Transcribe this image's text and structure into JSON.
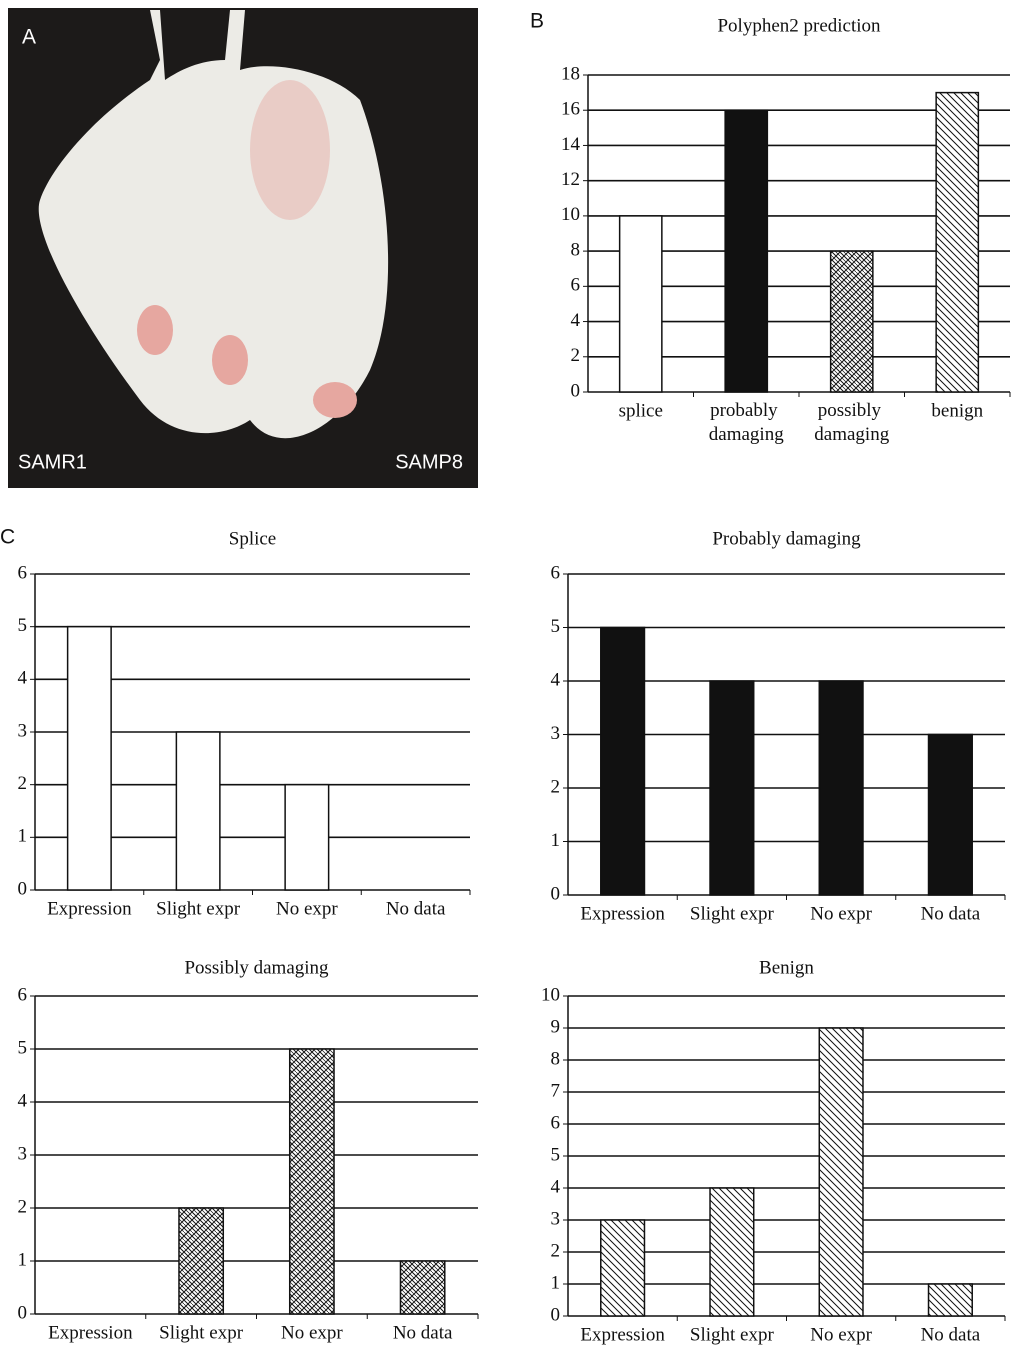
{
  "panel_labels": [
    "A",
    "B",
    "C"
  ],
  "photo": {
    "labels": [
      "SAMR1",
      "SAMP8"
    ]
  },
  "chart_data": [
    {
      "type": "bar",
      "title": "Polyphen2 prediction",
      "categories": [
        "splice",
        "probably damaging",
        "possibly damaging",
        "benign"
      ],
      "values": [
        10,
        16,
        8,
        17
      ],
      "fills": [
        "white",
        "black",
        "crosshatch",
        "diagonal"
      ],
      "ylim": [
        0,
        18
      ],
      "yticks": [
        0,
        2,
        4,
        6,
        8,
        10,
        12,
        14,
        16,
        18
      ],
      "grid": true
    },
    {
      "type": "bar",
      "title": "Splice",
      "categories": [
        "Expression",
        "Slight expr",
        "No expr",
        "No data"
      ],
      "values": [
        5,
        3,
        2,
        0
      ],
      "fills": [
        "white",
        "white",
        "white",
        "white"
      ],
      "ylim": [
        0,
        6
      ],
      "yticks": [
        0,
        1,
        2,
        3,
        4,
        5,
        6
      ],
      "grid": true
    },
    {
      "type": "bar",
      "title": "Probably damaging",
      "categories": [
        "Expression",
        "Slight expr",
        "No expr",
        "No data"
      ],
      "values": [
        5,
        4,
        4,
        3
      ],
      "fills": [
        "black",
        "black",
        "black",
        "black"
      ],
      "ylim": [
        0,
        6
      ],
      "yticks": [
        0,
        1,
        2,
        3,
        4,
        5,
        6
      ],
      "grid": true
    },
    {
      "type": "bar",
      "title": "Possibly damaging",
      "categories": [
        "Expression",
        "Slight expr",
        "No expr",
        "No data"
      ],
      "values": [
        0,
        2,
        5,
        1
      ],
      "fills": [
        "crosshatch",
        "crosshatch",
        "crosshatch",
        "crosshatch"
      ],
      "ylim": [
        0,
        6
      ],
      "yticks": [
        0,
        1,
        2,
        3,
        4,
        5,
        6
      ],
      "grid": true
    },
    {
      "type": "bar",
      "title": "Benign",
      "categories": [
        "Expression",
        "Slight expr",
        "No expr",
        "No data"
      ],
      "values": [
        3,
        4,
        9,
        1
      ],
      "fills": [
        "diagonal",
        "diagonal",
        "diagonal",
        "diagonal"
      ],
      "ylim": [
        0,
        10
      ],
      "yticks": [
        0,
        1,
        2,
        3,
        4,
        5,
        6,
        7,
        8,
        9,
        10
      ],
      "grid": true
    }
  ]
}
